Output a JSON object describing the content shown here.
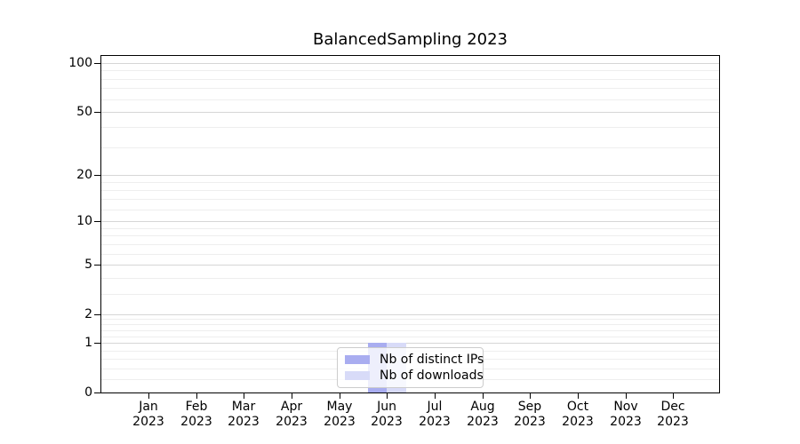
{
  "figure": {
    "title": "BalancedSampling 2023"
  },
  "chart_data": {
    "type": "bar",
    "title": "BalancedSampling 2023",
    "xlabel": "",
    "ylabel": "",
    "categories": [
      {
        "month": "Jan",
        "year": "2023"
      },
      {
        "month": "Feb",
        "year": "2023"
      },
      {
        "month": "Mar",
        "year": "2023"
      },
      {
        "month": "Apr",
        "year": "2023"
      },
      {
        "month": "May",
        "year": "2023"
      },
      {
        "month": "Jun",
        "year": "2023"
      },
      {
        "month": "Jul",
        "year": "2023"
      },
      {
        "month": "Aug",
        "year": "2023"
      },
      {
        "month": "Sep",
        "year": "2023"
      },
      {
        "month": "Oct",
        "year": "2023"
      },
      {
        "month": "Nov",
        "year": "2023"
      },
      {
        "month": "Dec",
        "year": "2023"
      }
    ],
    "series": [
      {
        "name": "Nb of distinct IPs",
        "color": "#a9adf0",
        "values": [
          0,
          0,
          0,
          0,
          0,
          1,
          0,
          0,
          0,
          0,
          0,
          0
        ]
      },
      {
        "name": "Nb of downloads",
        "color": "#d8dbf8",
        "values": [
          0,
          0,
          0,
          0,
          0,
          1,
          0,
          0,
          0,
          0,
          0,
          0
        ]
      }
    ],
    "yscale": "log1p",
    "ylim": [
      0,
      112
    ],
    "y_major_ticks": [
      {
        "value": 0,
        "label": "0"
      },
      {
        "value": 1,
        "label": "1"
      },
      {
        "value": 2,
        "label": "2"
      },
      {
        "value": 5,
        "label": "5"
      },
      {
        "value": 10,
        "label": "10"
      },
      {
        "value": 20,
        "label": "20"
      },
      {
        "value": 50,
        "label": "50"
      },
      {
        "value": 100,
        "label": "100"
      }
    ],
    "y_minor_ticks": [
      0.2,
      0.4,
      0.6,
      0.8,
      1.2,
      1.4,
      1.6,
      1.8,
      3,
      4,
      6,
      7,
      8,
      9,
      12,
      14,
      16,
      18,
      30,
      40,
      60,
      70,
      80,
      90
    ],
    "grid": "horizontal",
    "legend_position": "lower center"
  },
  "colors": {
    "grid_major": "#d6d6d6",
    "grid_minor": "#eeeeee",
    "spine": "#000000",
    "legend_border": "#cccccc",
    "tick": "#000000"
  }
}
